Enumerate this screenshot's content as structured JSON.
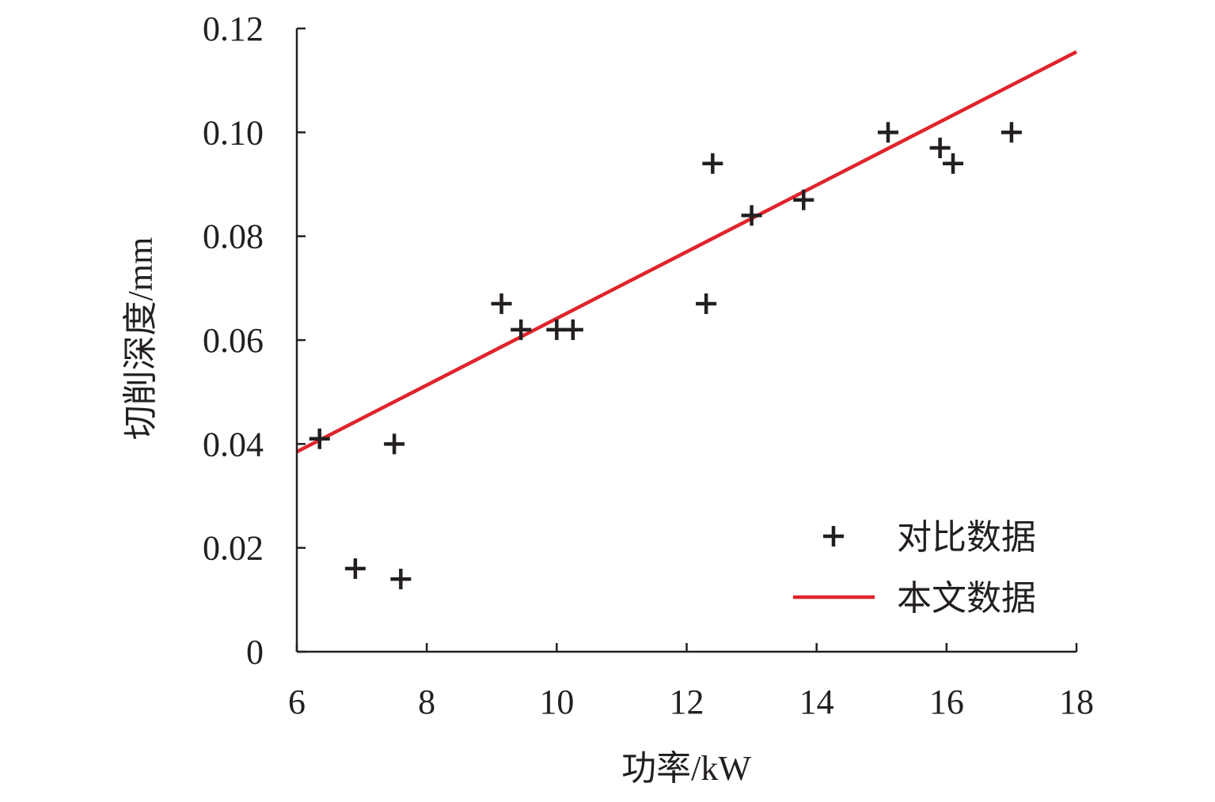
{
  "chart_data": {
    "type": "scatter",
    "title": "",
    "xlabel": "功率/kW",
    "ylabel": "切削深度/mm",
    "xlim": [
      6,
      18
    ],
    "ylim": [
      0,
      0.12
    ],
    "x_ticks": [
      6,
      8,
      10,
      12,
      14,
      16,
      18
    ],
    "x_tick_labels": [
      "6",
      "8",
      "10",
      "12",
      "14",
      "16",
      "18"
    ],
    "y_ticks": [
      0,
      0.02,
      0.04,
      0.06,
      0.08,
      0.1,
      0.12
    ],
    "y_tick_labels": [
      "0",
      "0.02",
      "0.04",
      "0.06",
      "0.08",
      "0.10",
      "0.12"
    ],
    "grid": false,
    "legend_position": "bottom-right",
    "series": [
      {
        "name": "对比数据",
        "type": "scatter",
        "marker": "plus",
        "color": "#231f20",
        "points": [
          {
            "x": 6.35,
            "y": 0.041
          },
          {
            "x": 6.9,
            "y": 0.016
          },
          {
            "x": 7.5,
            "y": 0.04
          },
          {
            "x": 7.6,
            "y": 0.014
          },
          {
            "x": 9.15,
            "y": 0.067
          },
          {
            "x": 9.45,
            "y": 0.062
          },
          {
            "x": 10.0,
            "y": 0.062
          },
          {
            "x": 10.25,
            "y": 0.062
          },
          {
            "x": 12.3,
            "y": 0.067
          },
          {
            "x": 12.4,
            "y": 0.094
          },
          {
            "x": 13.0,
            "y": 0.084
          },
          {
            "x": 13.8,
            "y": 0.087
          },
          {
            "x": 15.1,
            "y": 0.1
          },
          {
            "x": 15.9,
            "y": 0.097
          },
          {
            "x": 16.1,
            "y": 0.094
          },
          {
            "x": 17.0,
            "y": 0.1
          }
        ]
      },
      {
        "name": "本文数据",
        "type": "line",
        "color": "#e0242b",
        "points": [
          {
            "x": 6,
            "y": 0.0385
          },
          {
            "x": 18,
            "y": 0.1155
          }
        ]
      }
    ]
  }
}
